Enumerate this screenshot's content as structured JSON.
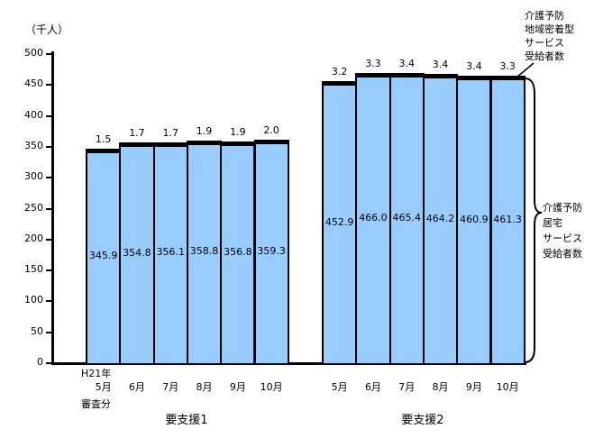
{
  "unit_label": "（千人）",
  "y_axis": {
    "ticks": [
      0,
      50,
      100,
      150,
      200,
      250,
      300,
      350,
      400,
      450,
      500
    ]
  },
  "x_axis": {
    "era_label": "H21年",
    "note_label": "審査分",
    "months": [
      "5月",
      "6月",
      "7月",
      "8月",
      "9月",
      "10月"
    ]
  },
  "annotations": {
    "top_lines": [
      "介護予防",
      "地域密着型",
      "サービス",
      "受給者数"
    ],
    "right_lines": [
      "介護予防",
      "居宅",
      "サービス",
      "受給者数"
    ]
  },
  "colors": {
    "bar_fill": "#99CCFF",
    "bar_border": "#000000",
    "cap_fill": "#000000",
    "background": "#ffffff"
  },
  "chart_data": {
    "type": "bar",
    "stacked": true,
    "unit": "千人",
    "ylim": [
      0,
      500
    ],
    "grid": false,
    "categories": [
      "5月",
      "6月",
      "7月",
      "8月",
      "9月",
      "10月"
    ],
    "groups": [
      {
        "label": "要支援1",
        "series": [
          {
            "name": "介護予防居宅サービス受給者数",
            "values": [
              345.9,
              354.8,
              356.1,
              358.8,
              356.8,
              359.3
            ]
          },
          {
            "name": "介護予防地域密着型サービス受給者数",
            "values": [
              1.5,
              1.7,
              1.7,
              1.9,
              1.9,
              2.0
            ]
          }
        ]
      },
      {
        "label": "要支援2",
        "series": [
          {
            "name": "介護予防居宅サービス受給者数",
            "values": [
              452.9,
              466.0,
              465.4,
              464.2,
              460.9,
              461.3
            ]
          },
          {
            "name": "介護予防地域密着型サービス受給者数",
            "values": [
              3.2,
              3.3,
              3.4,
              3.4,
              3.4,
              3.3
            ]
          }
        ]
      }
    ]
  }
}
